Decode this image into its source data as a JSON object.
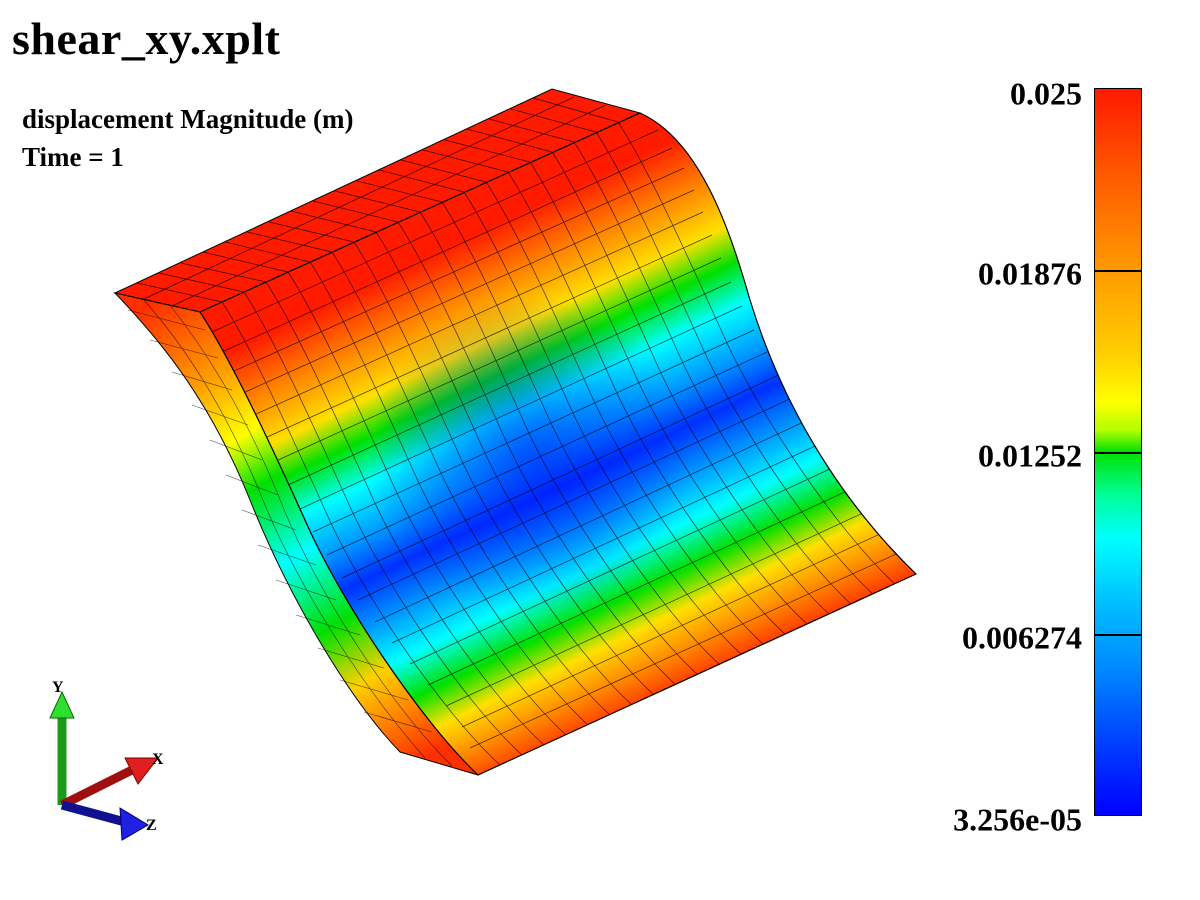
{
  "title": "shear_xy.xplt",
  "field_label": "displacement Magnitude (m)",
  "time_label": "Time = 1",
  "colorbar": {
    "labels": [
      "0.025",
      "0.01876",
      "0.01252",
      "0.006274",
      "3.256e-05"
    ]
  },
  "axes_triad": {
    "x": "X",
    "y": "Y",
    "z": "Z"
  },
  "colors": {
    "max": "#ff1a00",
    "mid": "#00e000",
    "min": "#0000ff"
  }
}
